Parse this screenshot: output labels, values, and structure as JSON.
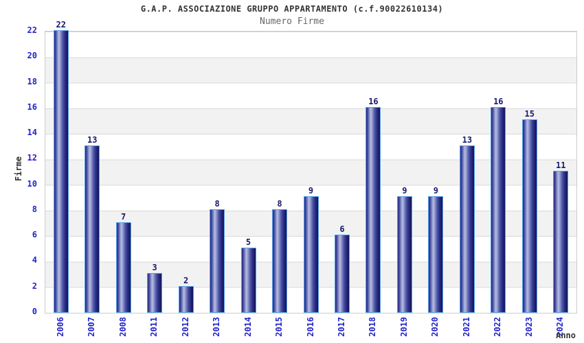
{
  "title": "G.A.P. ASSOCIAZIONE GRUPPO APPARTAMENTO (c.f.90022610134)",
  "subtitle": "Numero Firme",
  "chart_data": {
    "type": "bar",
    "title": "G.A.P. ASSOCIAZIONE GRUPPO APPARTAMENTO (c.f.90022610134)",
    "subtitle": "Numero Firme",
    "xlabel": "Anno",
    "ylabel": "Firme",
    "categories": [
      "2006",
      "2007",
      "2008",
      "2011",
      "2012",
      "2013",
      "2014",
      "2015",
      "2016",
      "2017",
      "2018",
      "2019",
      "2020",
      "2021",
      "2022",
      "2023",
      "2024"
    ],
    "values": [
      22,
      13,
      7,
      3,
      2,
      8,
      5,
      8,
      9,
      6,
      16,
      9,
      9,
      13,
      16,
      15,
      11
    ],
    "ylim": [
      0,
      22
    ],
    "yticks": [
      0,
      2,
      4,
      6,
      8,
      10,
      12,
      14,
      16,
      18,
      20,
      22
    ],
    "legend": "none",
    "grid": "horizontal gridlines every 2 units with alternating white/gray bands",
    "colors": {
      "bar_gradient_dark": "#15175c",
      "bar_gradient_mid": "#3a3f96",
      "bar_gradient_highlight": "#b6bce0",
      "bar_border": "#58a2e8",
      "tick_label": "#2323cc",
      "value_label": "#18186e",
      "title": "#333333",
      "subtitle": "#666666",
      "band": "#f2f2f2",
      "gridline": "#d9d9d9",
      "plot_border": "#cccccc",
      "background": "#ffffff"
    }
  }
}
